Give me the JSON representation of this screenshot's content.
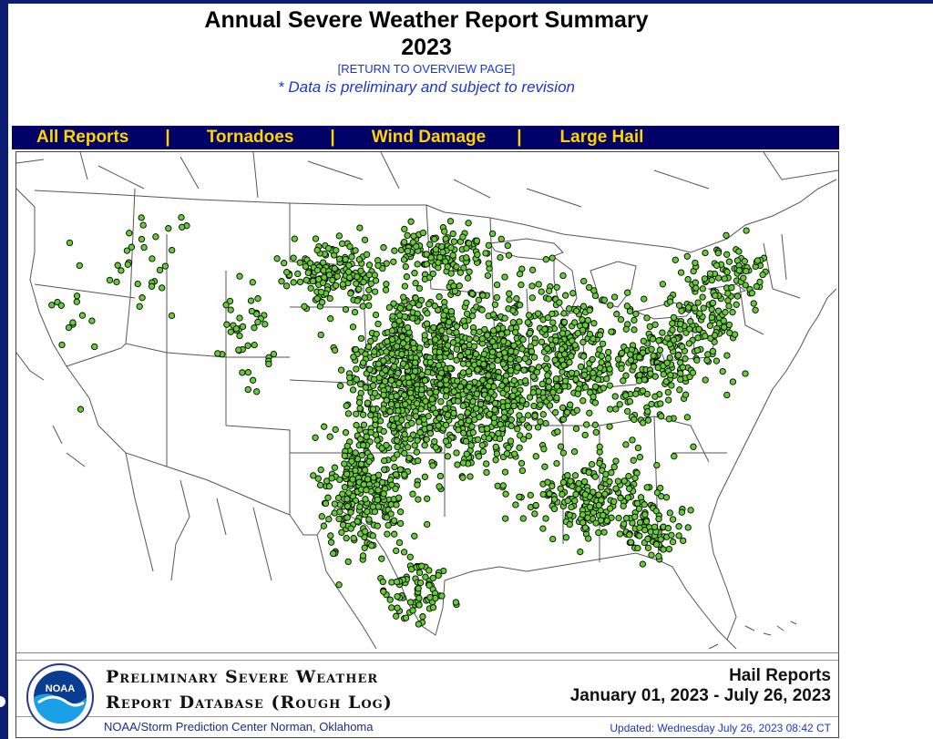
{
  "page": {
    "title": "Annual Severe Weather Report Summary",
    "year": "2023",
    "return_link": "[RETURN TO OVERVIEW PAGE]",
    "note": "* Data is preliminary and subject to revision"
  },
  "nav": {
    "items": [
      "All Reports",
      "Tornadoes",
      "Wind Damage",
      "Large Hail"
    ],
    "separator": "|"
  },
  "map": {
    "report_type": "Hail Reports",
    "marker_color": "#66cc33",
    "marker_outline": "#000000",
    "state_line_color": "#555555"
  },
  "footer": {
    "logo_text": "NOAA",
    "db_title_line1": "Preliminary Severe Weather",
    "db_title_line2": "Report Database (Rough Log)",
    "report_type": "Hail Reports",
    "date_range": "January 01, 2023 - July 26, 2023",
    "credit": "NOAA/Storm Prediction Center   Norman, Oklahoma",
    "updated": "Updated:  Wednesday July 26, 2023 08:42 CT"
  },
  "colors": {
    "frame": "#0b1e74",
    "nav_bg": "#000066",
    "nav_text": "#ffd400",
    "link": "#1a34d6"
  }
}
